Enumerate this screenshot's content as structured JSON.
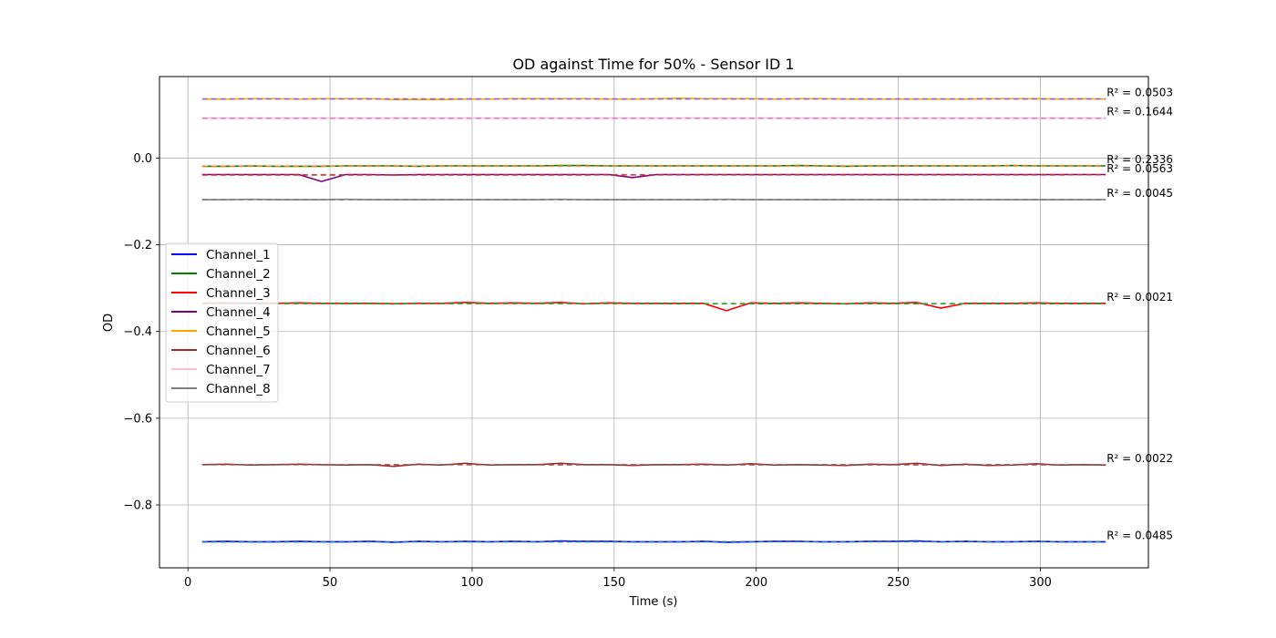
{
  "chart_data": {
    "type": "line",
    "title": "OD against Time for 50% - Sensor ID 1",
    "xlabel": "Time (s)",
    "ylabel": "OD",
    "xlim": [
      -10,
      338
    ],
    "ylim": [
      -0.945,
      0.188
    ],
    "xticks": [
      0,
      50,
      100,
      150,
      200,
      250,
      300
    ],
    "yticks": [
      -0.8,
      -0.6,
      -0.4,
      -0.2,
      0.0
    ],
    "ytick_labels": [
      "−0.8",
      "−0.6",
      "−0.4",
      "−0.2",
      "0.0"
    ],
    "xtick_labels": [
      "0",
      "50",
      "100",
      "150",
      "200",
      "250",
      "300"
    ],
    "grid": true,
    "legend_position": "center-left",
    "legend": [
      "Channel_1",
      "Channel_2",
      "Channel_3",
      "Channel_4",
      "Channel_5",
      "Channel_6",
      "Channel_7",
      "Channel_8"
    ],
    "x": [
      5,
      13.5,
      22,
      30.5,
      39,
      47,
      55.5,
      64,
      72.5,
      81,
      89,
      97.5,
      106,
      114.5,
      123,
      131,
      139.5,
      148,
      156.5,
      165,
      173,
      181.5,
      189.5,
      198,
      206.5,
      215,
      223,
      231.5,
      240,
      248,
      256.5,
      265,
      273.5,
      281.5,
      290,
      298.5,
      306.5,
      315,
      323
    ],
    "series": [
      {
        "name": "Channel_1",
        "color": "#0000ff",
        "values": [
          -0.885,
          -0.884,
          -0.885,
          -0.885,
          -0.884,
          -0.885,
          -0.885,
          -0.884,
          -0.886,
          -0.884,
          -0.885,
          -0.884,
          -0.885,
          -0.884,
          -0.885,
          -0.883,
          -0.884,
          -0.884,
          -0.885,
          -0.885,
          -0.885,
          -0.884,
          -0.886,
          -0.885,
          -0.884,
          -0.884,
          -0.885,
          -0.885,
          -0.884,
          -0.884,
          -0.883,
          -0.885,
          -0.884,
          -0.885,
          -0.885,
          -0.884,
          -0.885,
          -0.885,
          -0.885
        ],
        "fit_r2": "R² = 0.0485"
      },
      {
        "name": "Channel_2",
        "color": "#008000",
        "values": [
          -0.019,
          -0.019,
          -0.018,
          -0.019,
          -0.019,
          -0.019,
          -0.018,
          -0.018,
          -0.018,
          -0.019,
          -0.018,
          -0.018,
          -0.018,
          -0.018,
          -0.018,
          -0.017,
          -0.017,
          -0.018,
          -0.018,
          -0.018,
          -0.018,
          -0.018,
          -0.018,
          -0.018,
          -0.018,
          -0.017,
          -0.018,
          -0.019,
          -0.018,
          -0.018,
          -0.018,
          -0.018,
          -0.018,
          -0.018,
          -0.017,
          -0.018,
          -0.018,
          -0.018,
          -0.018
        ],
        "fit_r2": "R² = 0.2336"
      },
      {
        "name": "Channel_3",
        "color": "#ff0000",
        "values": [
          -0.335,
          -0.334,
          -0.335,
          -0.335,
          -0.334,
          -0.335,
          -0.335,
          -0.335,
          -0.336,
          -0.335,
          -0.335,
          -0.333,
          -0.335,
          -0.334,
          -0.335,
          -0.333,
          -0.336,
          -0.334,
          -0.335,
          -0.335,
          -0.335,
          -0.335,
          -0.352,
          -0.334,
          -0.335,
          -0.334,
          -0.335,
          -0.336,
          -0.334,
          -0.335,
          -0.333,
          -0.346,
          -0.335,
          -0.335,
          -0.335,
          -0.334,
          -0.335,
          -0.335,
          -0.335
        ],
        "fit_r2": "R² = 0.0021"
      },
      {
        "name": "Channel_4",
        "color": "#800080",
        "values": [
          -0.038,
          -0.038,
          -0.038,
          -0.038,
          -0.038,
          -0.054,
          -0.038,
          -0.038,
          -0.039,
          -0.038,
          -0.038,
          -0.038,
          -0.038,
          -0.038,
          -0.038,
          -0.038,
          -0.038,
          -0.038,
          -0.045,
          -0.038,
          -0.038,
          -0.038,
          -0.038,
          -0.038,
          -0.038,
          -0.038,
          -0.038,
          -0.038,
          -0.038,
          -0.038,
          -0.038,
          -0.038,
          -0.038,
          -0.038,
          -0.038,
          -0.038,
          -0.038,
          -0.038,
          -0.038
        ],
        "fit_r2": "R² = 0.0563"
      },
      {
        "name": "Channel_5",
        "color": "#ffa500",
        "values": [
          0.136,
          0.136,
          0.137,
          0.137,
          0.136,
          0.137,
          0.137,
          0.137,
          0.135,
          0.135,
          0.135,
          0.136,
          0.136,
          0.137,
          0.137,
          0.137,
          0.137,
          0.136,
          0.136,
          0.137,
          0.138,
          0.137,
          0.137,
          0.137,
          0.136,
          0.137,
          0.137,
          0.136,
          0.136,
          0.136,
          0.136,
          0.136,
          0.136,
          0.137,
          0.137,
          0.137,
          0.136,
          0.137,
          0.136
        ],
        "fit_r2": "R² = 0.0503"
      },
      {
        "name": "Channel_6",
        "color": "#a52a2a",
        "values": [
          -0.707,
          -0.706,
          -0.708,
          -0.707,
          -0.706,
          -0.707,
          -0.708,
          -0.707,
          -0.711,
          -0.706,
          -0.708,
          -0.704,
          -0.708,
          -0.707,
          -0.707,
          -0.704,
          -0.707,
          -0.707,
          -0.709,
          -0.707,
          -0.707,
          -0.706,
          -0.708,
          -0.705,
          -0.708,
          -0.707,
          -0.708,
          -0.709,
          -0.706,
          -0.707,
          -0.704,
          -0.709,
          -0.706,
          -0.709,
          -0.708,
          -0.705,
          -0.708,
          -0.707,
          -0.708
        ],
        "fit_r2": "R² = 0.0022"
      },
      {
        "name": "Channel_7",
        "color": "#ffc0cb",
        "values": [
          0.092,
          0.092,
          0.092,
          0.092,
          0.092,
          0.092,
          0.092,
          0.092,
          0.092,
          0.092,
          0.092,
          0.092,
          0.092,
          0.092,
          0.092,
          0.092,
          0.092,
          0.092,
          0.092,
          0.092,
          0.092,
          0.092,
          0.092,
          0.092,
          0.092,
          0.092,
          0.092,
          0.092,
          0.092,
          0.092,
          0.092,
          0.092,
          0.092,
          0.092,
          0.092,
          0.092,
          0.092,
          0.092,
          0.092
        ],
        "fit_r2": "R² = 0.1644"
      },
      {
        "name": "Channel_8",
        "color": "#808080",
        "values": [
          -0.096,
          -0.096,
          -0.095,
          -0.096,
          -0.096,
          -0.096,
          -0.095,
          -0.096,
          -0.096,
          -0.096,
          -0.096,
          -0.096,
          -0.096,
          -0.096,
          -0.096,
          -0.095,
          -0.096,
          -0.096,
          -0.096,
          -0.096,
          -0.096,
          -0.096,
          -0.095,
          -0.096,
          -0.096,
          -0.096,
          -0.096,
          -0.096,
          -0.096,
          -0.096,
          -0.096,
          -0.096,
          -0.096,
          -0.096,
          -0.096,
          -0.096,
          -0.096,
          -0.096,
          -0.096
        ],
        "fit_r2": "R² = 0.0045"
      }
    ],
    "fit_lines": [
      {
        "series": "Channel_1",
        "color": "#1f77b4",
        "y_start": -0.8852,
        "y_end": -0.8846
      },
      {
        "series": "Channel_2",
        "color": "#ff7f0e",
        "y_start": -0.0186,
        "y_end": -0.0178
      },
      {
        "series": "Channel_3",
        "color": "#2ca02c",
        "y_start": -0.3356,
        "y_end": -0.3358
      },
      {
        "series": "Channel_4",
        "color": "#d62728",
        "y_start": -0.039,
        "y_end": -0.0385
      },
      {
        "series": "Channel_5",
        "color": "#9467bd",
        "y_start": 0.1363,
        "y_end": 0.1363
      },
      {
        "series": "Channel_6",
        "color": "#8c564b",
        "y_start": -0.7072,
        "y_end": -0.7073
      },
      {
        "series": "Channel_7",
        "color": "#e377c2",
        "y_start": 0.092,
        "y_end": 0.092
      },
      {
        "series": "Channel_8",
        "color": "#7f7f7f",
        "y_start": -0.0959,
        "y_end": -0.0959
      }
    ]
  }
}
